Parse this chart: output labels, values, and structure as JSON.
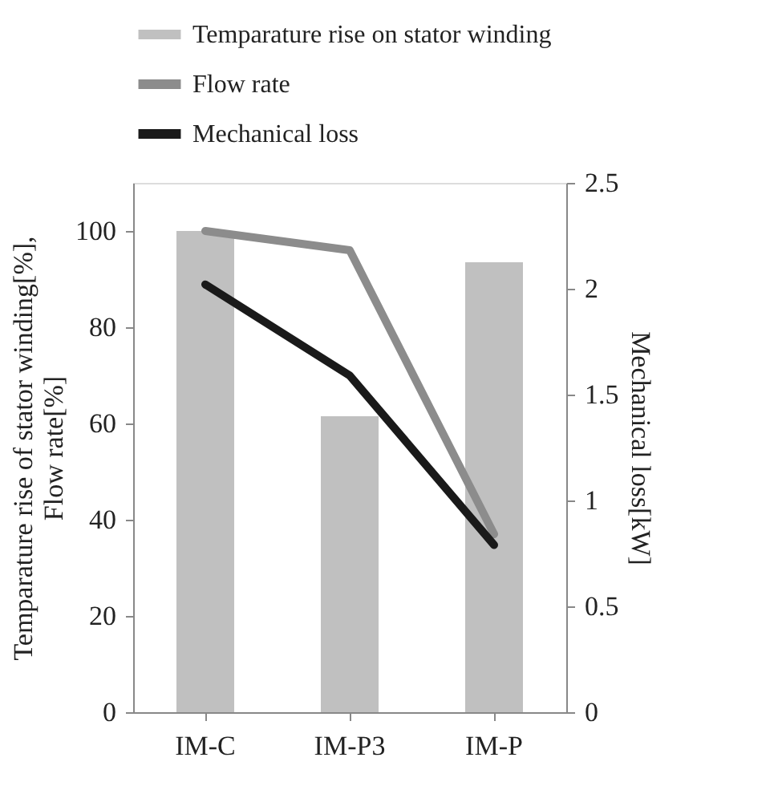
{
  "chart_data": {
    "type": "bar",
    "categories": [
      "IM-C",
      "IM-P3",
      "IM-P"
    ],
    "series": [
      {
        "name": "Temparature rise on stator winding",
        "color": "#c0c0c0",
        "values": [
          100,
          61.5,
          93.5
        ]
      },
      {
        "name": "Flow rate",
        "color": "#8c8c8c",
        "type": "line",
        "values": [
          100,
          96,
          37
        ]
      },
      {
        "name": "Mechanical loss",
        "color": "#1a1a1a",
        "type": "line",
        "axis": "y2",
        "values": [
          2.02,
          1.59,
          0.79
        ]
      }
    ],
    "ylabel": "Temparature rise of stator winding[%],\nFlow rate[%]",
    "y2label": "Mechanical loss[kW]",
    "ylim": [
      0,
      110
    ],
    "yticks": [
      0,
      20,
      40,
      60,
      80,
      100
    ],
    "y2lim": [
      0,
      2.5
    ],
    "y2ticks": [
      0,
      0.5,
      1,
      1.5,
      2,
      2.5
    ],
    "legend": "top",
    "grid": false
  }
}
